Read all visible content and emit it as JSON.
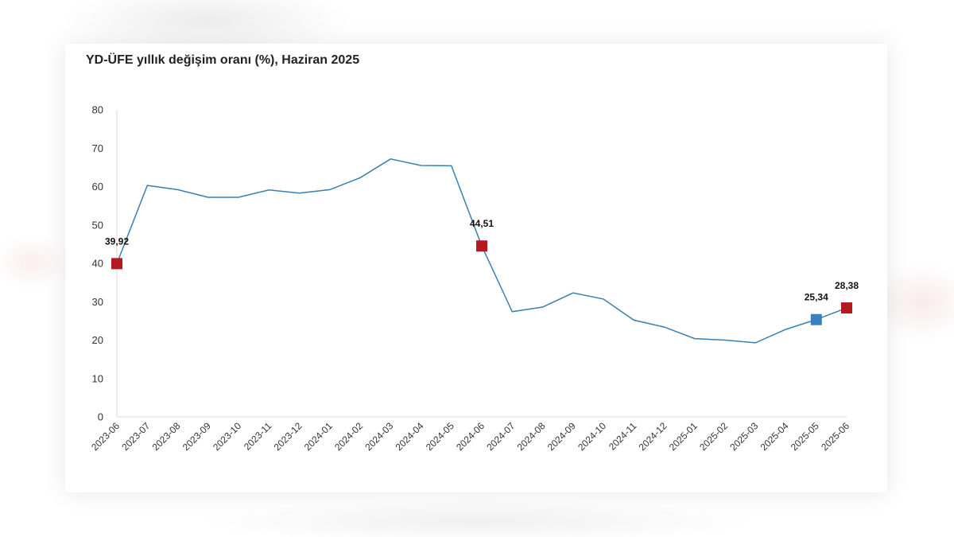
{
  "chart_data": {
    "type": "line",
    "title": "YD-ÜFE yıllık değişim oranı (%), Haziran 2025",
    "xlabel": "",
    "ylabel": "",
    "ylim": [
      0,
      80
    ],
    "yticks": [
      0,
      10,
      20,
      30,
      40,
      50,
      60,
      70,
      80
    ],
    "grid": false,
    "categories": [
      "2023-06",
      "2023-07",
      "2023-08",
      "2023-09",
      "2023-10",
      "2023-11",
      "2023-12",
      "2024-01",
      "2024-02",
      "2024-03",
      "2024-04",
      "2024-05",
      "2024-06",
      "2024-07",
      "2024-08",
      "2024-09",
      "2024-10",
      "2024-11",
      "2024-12",
      "2025-01",
      "2025-02",
      "2025-03",
      "2025-04",
      "2025-05",
      "2025-06"
    ],
    "series": [
      {
        "values": [
          39.92,
          60.3,
          59.2,
          57.2,
          57.2,
          59.1,
          58.3,
          59.2,
          62.3,
          67.2,
          65.5,
          65.4,
          44.51,
          27.4,
          28.6,
          32.3,
          30.7,
          25.2,
          23.4,
          20.4,
          20.0,
          19.3,
          22.8,
          25.34,
          28.38
        ],
        "color": "#3a7fb0"
      }
    ],
    "highlighted_points": [
      {
        "category": "2023-06",
        "value": 39.92,
        "label": "39,92",
        "color": "#b3191f"
      },
      {
        "category": "2024-06",
        "value": 44.51,
        "label": "44,51",
        "color": "#b3191f"
      },
      {
        "category": "2025-05",
        "value": 25.34,
        "label": "25,34",
        "color": "#3a7fc0"
      },
      {
        "category": "2025-06",
        "value": 28.38,
        "label": "28,38",
        "color": "#b3191f"
      }
    ]
  }
}
